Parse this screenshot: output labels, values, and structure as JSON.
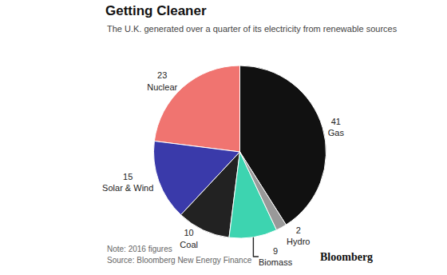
{
  "chart_data": {
    "type": "pie",
    "title": "Getting Cleaner",
    "subtitle": "The U.K. generated over a quarter of its electricity from renewable sources",
    "annotations": [
      "Note: 2016 figures",
      "Source: Bloomberg New Energy Finance",
      "Bloomberg"
    ],
    "categories": [
      "Gas",
      "Nuclear",
      "Solar & Wind",
      "Coal",
      "Biomass",
      "Hydro"
    ],
    "values": [
      41,
      23,
      15,
      10,
      9,
      2
    ],
    "colors": [
      "#111111",
      "#f07470",
      "#3a3aaa",
      "#222222",
      "#3dd4b0",
      "#999999"
    ],
    "data_labels": true
  }
}
